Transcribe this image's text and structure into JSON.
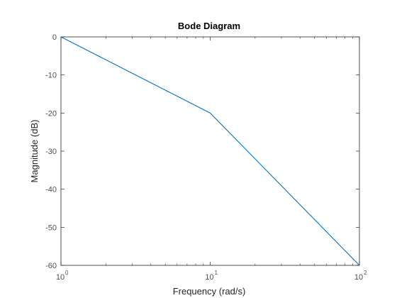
{
  "chart_data": {
    "type": "line",
    "title": "Bode Diagram",
    "xlabel": "Frequency  (rad/s)",
    "ylabel": "Magnitude (dB)",
    "xscale": "log",
    "xlim": [
      1,
      100
    ],
    "ylim": [
      -60,
      0
    ],
    "grid": false,
    "xticks": [
      {
        "base": "10",
        "exp": "0",
        "value": 1
      },
      {
        "base": "10",
        "exp": "1",
        "value": 10
      },
      {
        "base": "10",
        "exp": "2",
        "value": 100
      }
    ],
    "yticks": [
      "0",
      "-10",
      "-20",
      "-30",
      "-40",
      "-50",
      "-60"
    ],
    "series": [
      {
        "color": "#0072bd",
        "x": [
          1,
          10,
          100
        ],
        "y": [
          0,
          -20,
          -60
        ]
      }
    ]
  }
}
